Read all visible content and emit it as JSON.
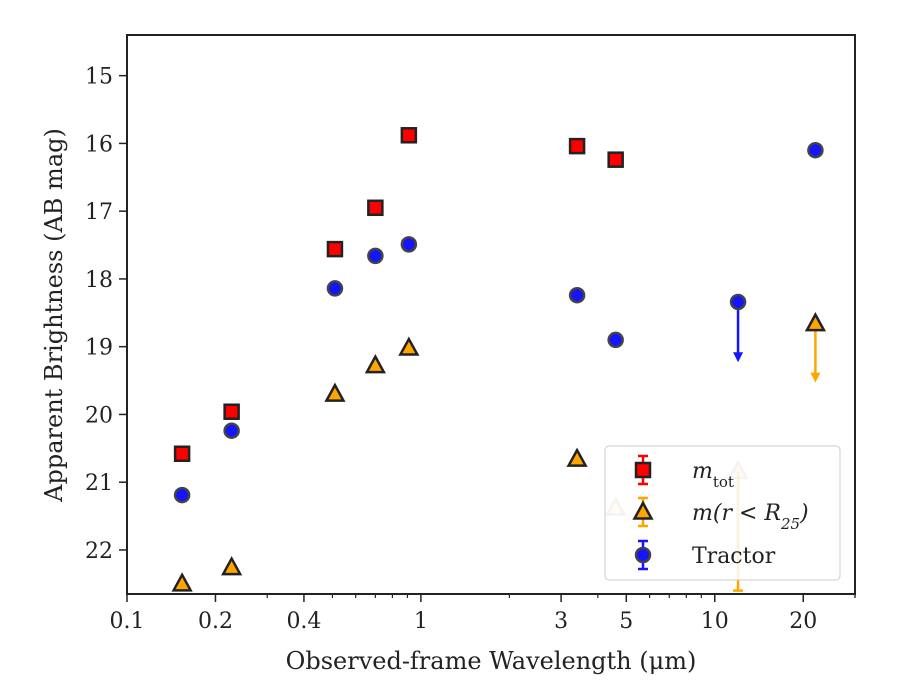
{
  "chart_data": {
    "type": "scatter",
    "xscale": "log",
    "yaxis_inverted": true,
    "xlabel": "Observed-frame Wavelength (μm)",
    "ylabel": "Apparent Brightness (AB mag)",
    "xlim": [
      0.1,
      30
    ],
    "ylim": [
      22.65,
      14.4
    ],
    "xticks": [
      0.1,
      0.2,
      0.4,
      1,
      3,
      5,
      10,
      20
    ],
    "xtick_labels": [
      "0.1",
      "0.2",
      "0.4",
      "1",
      "3",
      "5",
      "10",
      "20"
    ],
    "yticks": [
      15,
      16,
      17,
      18,
      19,
      20,
      21,
      22
    ],
    "ytick_labels": [
      "15",
      "16",
      "17",
      "18",
      "19",
      "20",
      "21",
      "22"
    ],
    "grid": false,
    "legend_placement": "lower-right",
    "series": [
      {
        "name_math": "m",
        "name_sub": "tot",
        "marker": "square",
        "color": "#ff0000",
        "edge": "#222222",
        "points": [
          {
            "x": 0.154,
            "y": 20.58
          },
          {
            "x": 0.227,
            "y": 19.96
          },
          {
            "x": 0.51,
            "y": 17.56
          },
          {
            "x": 0.7,
            "y": 16.95
          },
          {
            "x": 0.91,
            "y": 15.88
          },
          {
            "x": 3.4,
            "y": 16.04
          },
          {
            "x": 4.6,
            "y": 16.24
          }
        ]
      },
      {
        "name_math": "m(r < R",
        "name_sub": "25",
        "name_close": ")",
        "marker": "triangle",
        "color": "#ffa500",
        "edge": "#222222",
        "points": [
          {
            "x": 0.154,
            "y": 22.5
          },
          {
            "x": 0.227,
            "y": 22.26
          },
          {
            "x": 0.51,
            "y": 19.7
          },
          {
            "x": 0.7,
            "y": 19.28
          },
          {
            "x": 0.91,
            "y": 19.02
          },
          {
            "x": 3.4,
            "y": 20.66
          },
          {
            "x": 4.6,
            "y": 21.38
          },
          {
            "x": 12.0,
            "y": 20.84,
            "yerr_down": 22.6
          },
          {
            "x": 22.0,
            "y": 18.66,
            "upper_limit_to": 19.5
          }
        ]
      },
      {
        "name": "Tractor",
        "marker": "circle",
        "color": "#1414ff",
        "edge": "#444444",
        "points": [
          {
            "x": 0.154,
            "y": 21.19
          },
          {
            "x": 0.227,
            "y": 20.24
          },
          {
            "x": 0.51,
            "y": 18.14
          },
          {
            "x": 0.7,
            "y": 17.66
          },
          {
            "x": 0.91,
            "y": 17.49
          },
          {
            "x": 3.4,
            "y": 18.24
          },
          {
            "x": 4.6,
            "y": 18.9
          },
          {
            "x": 12.0,
            "y": 18.34,
            "upper_limit_to": 19.2
          },
          {
            "x": 22.0,
            "y": 16.1
          }
        ]
      }
    ]
  }
}
